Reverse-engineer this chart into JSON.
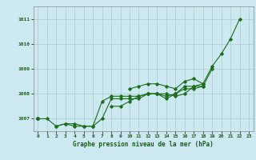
{
  "title": "Graphe pression niveau de la mer (hPa)",
  "x_labels": [
    "0",
    "1",
    "2",
    "3",
    "4",
    "5",
    "6",
    "7",
    "8",
    "9",
    "10",
    "11",
    "12",
    "13",
    "14",
    "15",
    "16",
    "17",
    "18",
    "19",
    "20",
    "21",
    "22",
    "23"
  ],
  "x_values": [
    0,
    1,
    2,
    3,
    4,
    5,
    6,
    7,
    8,
    9,
    10,
    11,
    12,
    13,
    14,
    15,
    16,
    17,
    18,
    19,
    20,
    21,
    22,
    23
  ],
  "ylim": [
    1006.5,
    1011.5
  ],
  "yticks": [
    1007,
    1008,
    1009,
    1010,
    1011
  ],
  "series": [
    [
      1007.0,
      1007.0,
      1006.7,
      1006.8,
      1006.7,
      1006.7,
      1006.7,
      1007.0,
      1007.8,
      1007.8,
      1007.8,
      1007.8,
      1008.0,
      1008.0,
      1007.8,
      1008.0,
      1008.2,
      1008.2,
      1008.3,
      1009.0,
      null,
      null,
      null,
      null
    ],
    [
      1007.0,
      null,
      null,
      null,
      null,
      null,
      null,
      null,
      1007.5,
      1007.5,
      1007.7,
      1007.9,
      1008.0,
      1008.0,
      1008.0,
      1007.9,
      1008.0,
      1008.3,
      1008.4,
      null,
      null,
      null,
      null,
      null
    ],
    [
      1007.0,
      null,
      1006.7,
      1006.8,
      1006.8,
      1006.7,
      1006.7,
      1007.7,
      1007.9,
      1007.9,
      1007.9,
      1007.9,
      1008.0,
      1008.0,
      1007.9,
      1008.0,
      1008.3,
      1008.3,
      1008.3,
      null,
      null,
      null,
      null,
      null
    ],
    [
      1007.0,
      null,
      null,
      null,
      null,
      null,
      null,
      null,
      null,
      null,
      1008.2,
      1008.3,
      1008.4,
      1008.4,
      1008.3,
      1008.2,
      1008.5,
      1008.6,
      1008.4,
      1009.1,
      1009.6,
      1010.2,
      1011.0,
      null
    ]
  ],
  "line_color": "#1a6e1a",
  "marker": "D",
  "marker_size": 1.8,
  "bg_color": "#cce8f0",
  "grid_color": "#aacccc",
  "tick_color": "#1a5c1a",
  "label_color": "#1a5c1a",
  "figsize": [
    3.2,
    2.0
  ],
  "dpi": 100
}
